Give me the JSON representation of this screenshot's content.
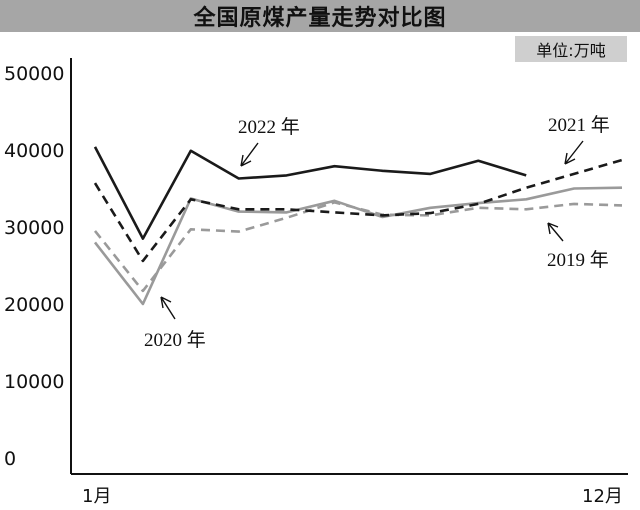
{
  "chart_data": {
    "type": "line",
    "title": "全国原煤产量走势对比图",
    "unit": "单位:万吨",
    "xlabel": "",
    "ylabel": "",
    "x_tick_labels": [
      "1月",
      "12月"
    ],
    "y_tick_labels": [
      "50000",
      "40000",
      "30000",
      "20000",
      "10000",
      "0"
    ],
    "ylim": [
      0,
      50000
    ],
    "grid": false,
    "series": [
      {
        "name": "2022年",
        "style": "solid",
        "color": "#1a1a1a",
        "values": [
          40400,
          28500,
          39900,
          36300,
          36700,
          37900,
          37300,
          36900,
          38600,
          36700
        ]
      },
      {
        "name": "2021年",
        "style": "dashed",
        "color": "#1a1a1a",
        "values": [
          35700,
          25600,
          33600,
          32300,
          32300,
          31900,
          31500,
          31800,
          33000,
          35100,
          36900,
          38700
        ]
      },
      {
        "name": "2020年",
        "style": "solid",
        "color": "#9a9a9a",
        "values": [
          28000,
          20000,
          33700,
          32000,
          31900,
          33400,
          31300,
          32500,
          33100,
          33600,
          35000,
          35100
        ]
      },
      {
        "name": "2019年",
        "style": "dashed",
        "color": "#9a9a9a",
        "values": [
          29500,
          21700,
          29700,
          29400,
          31200,
          33200,
          31600,
          31500,
          32500,
          32300,
          33000,
          32800
        ]
      }
    ],
    "annotations": [
      "2022 年",
      "2021 年",
      "2020 年",
      "2019 年"
    ]
  }
}
